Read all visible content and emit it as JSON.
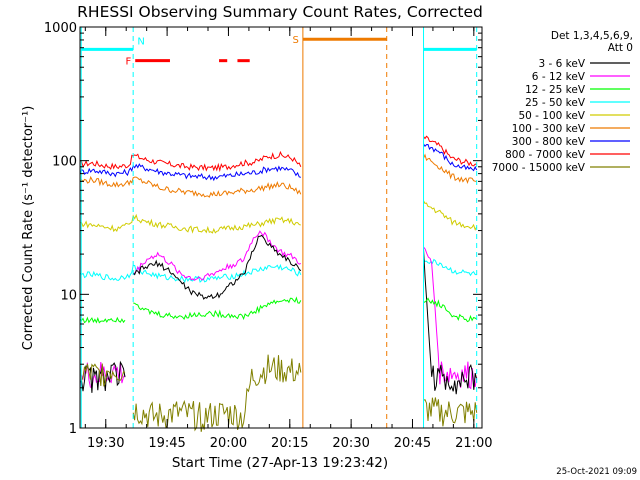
{
  "chart_data": {
    "type": "line",
    "title": "RHESSI Observing Summary Count Rates, Corrected",
    "xlabel": "Start Time (27-Apr-13 19:23:42)",
    "ylabel": "Corrected Count Rate (s⁻¹ detector⁻¹)",
    "yscale": "log",
    "ylim": [
      1,
      1000
    ],
    "xlim_minutes_after_1923_42": [
      0,
      98.3
    ],
    "y_ticks": [
      {
        "value": 1,
        "label": "1"
      },
      {
        "value": 10,
        "label": "10"
      },
      {
        "value": 100,
        "label": "100"
      },
      {
        "value": 1000,
        "label": "1000"
      }
    ],
    "x_ticks": [
      {
        "time": "19:30",
        "minutes": 6.3,
        "label": "19:30"
      },
      {
        "time": "19:45",
        "minutes": 21.3,
        "label": "19:45"
      },
      {
        "time": "20:00",
        "minutes": 36.3,
        "label": "20:00"
      },
      {
        "time": "20:15",
        "minutes": 51.3,
        "label": "20:15"
      },
      {
        "time": "20:30",
        "minutes": 66.3,
        "label": "20:30"
      },
      {
        "time": "20:45",
        "minutes": 81.3,
        "label": "20:45"
      },
      {
        "time": "21:00",
        "minutes": 96.3,
        "label": "21:00"
      }
    ],
    "legend": {
      "placement": "right",
      "header": [
        "Det 1,3,4,5,6,9,",
        "Att 0"
      ],
      "entries": [
        {
          "label": "3 - 6 keV",
          "color": "#000000"
        },
        {
          "label": "6 - 12 keV",
          "color": "#ff00ff"
        },
        {
          "label": "12 - 25 keV",
          "color": "#00ff00"
        },
        {
          "label": "25 - 50 keV",
          "color": "#00ffff"
        },
        {
          "label": "50 - 100 keV",
          "color": "#d0cc00"
        },
        {
          "label": "100 - 300 keV",
          "color": "#ee7a00"
        },
        {
          "label": "300 - 800 keV",
          "color": "#0000ff"
        },
        {
          "label": "800 - 7000 keV",
          "color": "#ff0000"
        },
        {
          "label": "7000 - 15000 keV",
          "color": "#808000"
        }
      ]
    },
    "series": [
      {
        "color": "#ff0000",
        "segments": [
          [
            [
              0,
              94
            ],
            [
              3,
              96
            ],
            [
              6,
              92
            ],
            [
              9,
              90
            ],
            [
              12,
              93
            ],
            [
              13,
              110
            ],
            [
              16,
              102
            ],
            [
              20,
              96
            ],
            [
              26,
              90
            ],
            [
              32,
              88
            ],
            [
              36,
              90
            ],
            [
              39,
              95
            ],
            [
              43,
              98
            ],
            [
              46,
              108
            ],
            [
              49,
              110
            ],
            [
              52,
              104
            ],
            [
              54,
              90
            ]
          ],
          [
            [
              84,
              150
            ],
            [
              88,
              128
            ],
            [
              91,
              104
            ],
            [
              94,
              98
            ],
            [
              97,
              94
            ]
          ]
        ]
      },
      {
        "color": "#0000ff",
        "segments": [
          [
            [
              0,
              82
            ],
            [
              3,
              85
            ],
            [
              6,
              82
            ],
            [
              9,
              80
            ],
            [
              12,
              82
            ],
            [
              13,
              92
            ],
            [
              16,
              88
            ],
            [
              20,
              82
            ],
            [
              26,
              77
            ],
            [
              32,
              75
            ],
            [
              36,
              77
            ],
            [
              39,
              79
            ],
            [
              43,
              82
            ],
            [
              46,
              87
            ],
            [
              49,
              88
            ],
            [
              52,
              83
            ],
            [
              54,
              75
            ]
          ],
          [
            [
              84,
              135
            ],
            [
              88,
              116
            ],
            [
              91,
              94
            ],
            [
              94,
              88
            ],
            [
              97,
              85
            ]
          ]
        ]
      },
      {
        "color": "#ee7a00",
        "segments": [
          [
            [
              0,
              70
            ],
            [
              3,
              72
            ],
            [
              6,
              68
            ],
            [
              9,
              66
            ],
            [
              12,
              68
            ],
            [
              13,
              74
            ],
            [
              16,
              69
            ],
            [
              20,
              62
            ],
            [
              26,
              58
            ],
            [
              32,
              56
            ],
            [
              36,
              57
            ],
            [
              39,
              59
            ],
            [
              43,
              61
            ],
            [
              46,
              64
            ],
            [
              49,
              66
            ],
            [
              52,
              62
            ],
            [
              54,
              56
            ]
          ],
          [
            [
              84,
              108
            ],
            [
              88,
              90
            ],
            [
              91,
              76
            ],
            [
              94,
              72
            ],
            [
              97,
              70
            ]
          ]
        ]
      },
      {
        "color": "#d0cc00",
        "segments": [
          [
            [
              0,
              34
            ],
            [
              3,
              33
            ],
            [
              6,
              32
            ],
            [
              9,
              31
            ],
            [
              12,
              33
            ],
            [
              13,
              38
            ],
            [
              16,
              35
            ],
            [
              20,
              33
            ],
            [
              26,
              31
            ],
            [
              32,
              30
            ],
            [
              36,
              31
            ],
            [
              39,
              32
            ],
            [
              43,
              33
            ],
            [
              46,
              35
            ],
            [
              49,
              36
            ],
            [
              52,
              35
            ],
            [
              54,
              33
            ]
          ],
          [
            [
              84,
              48
            ],
            [
              88,
              41
            ],
            [
              91,
              35
            ],
            [
              94,
              33
            ],
            [
              97,
              32
            ]
          ]
        ]
      },
      {
        "color": "#00ffff",
        "segments": [
          [
            [
              0,
              14
            ],
            [
              3,
              14
            ],
            [
              6,
              13.5
            ],
            [
              9,
              13
            ],
            [
              12,
              14
            ],
            [
              13,
              16
            ],
            [
              16,
              14.5
            ],
            [
              20,
              13.5
            ],
            [
              26,
              13
            ],
            [
              32,
              13
            ],
            [
              36,
              13.5
            ],
            [
              39,
              14
            ],
            [
              43,
              15
            ],
            [
              46,
              16
            ],
            [
              49,
              16
            ],
            [
              52,
              15
            ],
            [
              54,
              14
            ]
          ],
          [
            [
              84,
              18
            ],
            [
              88,
              17
            ],
            [
              91,
              15
            ],
            [
              94,
              14.5
            ],
            [
              97,
              14
            ]
          ]
        ]
      },
      {
        "color": "#ff00ff",
        "segments": [
          [
            [
              0,
              2.5
            ],
            [
              4,
              2.4
            ],
            [
              8,
              2.6
            ],
            [
              11,
              2.5
            ]
          ],
          [
            [
              13,
              14
            ],
            [
              16,
              18
            ],
            [
              19,
              20
            ],
            [
              22,
              17
            ],
            [
              25,
              14
            ],
            [
              28,
              13
            ],
            [
              32,
              14
            ],
            [
              36,
              16
            ],
            [
              40,
              18
            ],
            [
              42,
              25
            ],
            [
              44,
              30
            ],
            [
              46,
              26
            ],
            [
              48,
              22
            ],
            [
              50,
              20
            ],
            [
              52,
              19
            ],
            [
              54,
              17
            ]
          ],
          [
            [
              84,
              22
            ],
            [
              86,
              17
            ],
            [
              88,
              2.6
            ],
            [
              92,
              2.5
            ],
            [
              97,
              2.4
            ]
          ]
        ]
      },
      {
        "color": "#000000",
        "segments": [
          [
            [
              0,
              2.4
            ],
            [
              4,
              2.3
            ],
            [
              8,
              2.5
            ],
            [
              11,
              2.4
            ]
          ],
          [
            [
              13,
              14
            ],
            [
              16,
              16
            ],
            [
              19,
              17
            ],
            [
              22,
              15
            ],
            [
              25,
              12
            ],
            [
              28,
              10
            ],
            [
              31,
              9.5
            ],
            [
              34,
              10
            ],
            [
              37,
              12
            ],
            [
              40,
              14
            ],
            [
              42,
              20
            ],
            [
              44,
              28
            ],
            [
              46,
              24
            ],
            [
              48,
              21
            ],
            [
              50,
              19
            ],
            [
              52,
              17
            ],
            [
              54,
              15
            ]
          ],
          [
            [
              84,
              21
            ],
            [
              86,
              2.4
            ],
            [
              92,
              2.3
            ],
            [
              97,
              2.3
            ]
          ]
        ]
      },
      {
        "color": "#00ff00",
        "segments": [
          [
            [
              0,
              6.5
            ],
            [
              4,
              6.3
            ],
            [
              8,
              6.6
            ],
            [
              11,
              6.4
            ]
          ],
          [
            [
              13,
              9
            ],
            [
              16,
              7.5
            ],
            [
              20,
              7
            ],
            [
              24,
              6.8
            ],
            [
              28,
              7
            ],
            [
              32,
              7.2
            ],
            [
              36,
              7
            ],
            [
              40,
              6.8
            ],
            [
              43,
              7.5
            ],
            [
              46,
              8.5
            ],
            [
              50,
              9
            ],
            [
              54,
              9
            ]
          ],
          [
            [
              84,
              9
            ],
            [
              88,
              8.5
            ],
            [
              91,
              7
            ],
            [
              94,
              6.5
            ],
            [
              97,
              6.5
            ]
          ]
        ]
      },
      {
        "color": "#808000",
        "segments": [
          [
            [
              0,
              2.6
            ],
            [
              4,
              2.5
            ],
            [
              8,
              2.8
            ],
            [
              11,
              2.6
            ]
          ],
          [
            [
              13,
              1.4
            ],
            [
              18,
              1.2
            ],
            [
              24,
              1.3
            ],
            [
              30,
              1.2
            ],
            [
              36,
              1.3
            ],
            [
              40,
              1.2
            ],
            [
              42,
              2.4
            ],
            [
              46,
              2.8
            ],
            [
              50,
              2.7
            ],
            [
              54,
              2.6
            ]
          ],
          [
            [
              84,
              1.4
            ],
            [
              88,
              1.3
            ],
            [
              92,
              1.3
            ],
            [
              97,
              1.3
            ]
          ]
        ]
      }
    ],
    "markers": {
      "vertical_lines": [
        {
          "minutes": 0.3,
          "color": "#00ffff",
          "style": "solid"
        },
        {
          "minutes": 13.0,
          "color": "#00ffff",
          "style": "dashed"
        },
        {
          "minutes": 54.5,
          "color": "#ee7a00",
          "style": "solid"
        },
        {
          "minutes": 75.0,
          "color": "#ee7a00",
          "style": "dashed"
        },
        {
          "minutes": 84.0,
          "color": "#00ffff",
          "style": "solid"
        },
        {
          "minutes": 97.0,
          "color": "#00ffff",
          "style": "dashed"
        }
      ],
      "bars": [
        {
          "label": "",
          "color": "#00ffff",
          "start": 0.3,
          "end": 13.0,
          "y": 680
        },
        {
          "label": "N",
          "color": "#00ffff",
          "start": 13.3,
          "end": 13.3,
          "y": 790
        },
        {
          "label": "F",
          "color": "#ff0000",
          "start": 13.5,
          "end": 22.0,
          "y": 560
        },
        {
          "label": "",
          "color": "#ff0000",
          "start": 34.0,
          "end": 36.0,
          "y": 560
        },
        {
          "label": "",
          "color": "#ff0000",
          "start": 38.5,
          "end": 41.5,
          "y": 560
        },
        {
          "label": "S",
          "color": "#ee7a00",
          "start": 54.5,
          "end": 75.0,
          "y": 810
        },
        {
          "label": "",
          "color": "#00ffff",
          "start": 84.0,
          "end": 97.0,
          "y": 680
        }
      ]
    }
  },
  "footer": {
    "date_stamp": "25-Oct-2021 09:09"
  }
}
